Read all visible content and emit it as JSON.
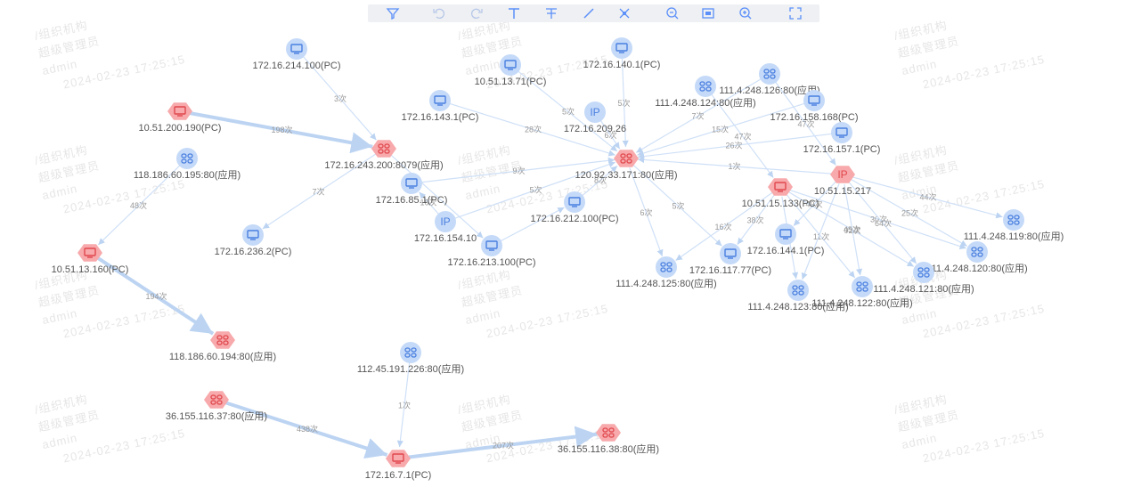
{
  "watermark": {
    "lines": [
      "/组织机构",
      "超级管理员",
      "admin",
      "2024-02-23 17:25:15"
    ]
  },
  "nodes": [
    {
      "label": "172.16.214.100(PC)",
      "kind": "pc",
      "alert": false
    },
    {
      "label": "10.51.13.71(PC)",
      "kind": "pc",
      "alert": false
    },
    {
      "label": "172.16.140.1(PC)",
      "kind": "pc",
      "alert": false
    },
    {
      "label": "172.16.143.1(PC)",
      "kind": "pc",
      "alert": false
    },
    {
      "label": "172.16.209.26",
      "kind": "ip",
      "badge": "IP",
      "alert": false
    },
    {
      "label": "10.51.200.190(PC)",
      "kind": "pc",
      "alert": true
    },
    {
      "label": "172.16.243.200:8079(应用)",
      "kind": "app",
      "alert": true
    },
    {
      "label": "120.92.33.171:80(应用)",
      "kind": "app",
      "alert": true
    },
    {
      "label": "118.186.60.195:80(应用)",
      "kind": "app",
      "alert": false
    },
    {
      "label": "172.16.85.1(PC)",
      "kind": "pc",
      "alert": false
    },
    {
      "label": "172.16.212.100(PC)",
      "kind": "pc",
      "alert": false
    },
    {
      "label": "172.16.154.10",
      "kind": "ip",
      "badge": "IP",
      "alert": false
    },
    {
      "label": "172.16.236.2(PC)",
      "kind": "pc",
      "alert": false
    },
    {
      "label": "172.16.213.100(PC)",
      "kind": "pc",
      "alert": false
    },
    {
      "label": "10.51.13.160(PC)",
      "kind": "pc",
      "alert": true
    },
    {
      "label": "118.186.60.194:80(应用)",
      "kind": "app",
      "alert": true
    },
    {
      "label": "112.45.191.226:80(应用)",
      "kind": "app",
      "alert": false
    },
    {
      "label": "36.155.116.37:80(应用)",
      "kind": "app",
      "alert": true
    },
    {
      "label": "172.16.7.1(PC)",
      "kind": "pc",
      "alert": true
    },
    {
      "label": "36.155.116.38:80(应用)",
      "kind": "app",
      "alert": true
    },
    {
      "label": "111.4.248.126:80(应用)",
      "kind": "app",
      "alert": false
    },
    {
      "label": "111.4.248.124:80(应用)",
      "kind": "app",
      "alert": false
    },
    {
      "label": "172.16.158.168(PC)",
      "kind": "pc",
      "alert": false
    },
    {
      "label": "172.16.157.1(PC)",
      "kind": "pc",
      "alert": false
    },
    {
      "label": "10.51.15.217",
      "kind": "ip",
      "badge": "IP",
      "alert": true
    },
    {
      "label": "10.51.15.133(PC)",
      "kind": "pc",
      "alert": true
    },
    {
      "label": "111.4.248.119:80(应用)",
      "kind": "app",
      "alert": false
    },
    {
      "label": "172.16.144.1(PC)",
      "kind": "pc",
      "alert": false
    },
    {
      "label": "172.16.117.77(PC)",
      "kind": "pc",
      "alert": false
    },
    {
      "label": "111.4.248.120:80(应用)",
      "kind": "app",
      "alert": false
    },
    {
      "label": "111.4.248.125:80(应用)",
      "kind": "app",
      "alert": false
    },
    {
      "label": "111.4.248.121:80(应用)",
      "kind": "app",
      "alert": false
    },
    {
      "label": "111.4.248.122:80(应用)",
      "kind": "app",
      "alert": false
    },
    {
      "label": "111.4.248.123:80(应用)",
      "kind": "app",
      "alert": false
    }
  ],
  "edges": [
    {
      "source": 0,
      "target": 6,
      "label": "3次"
    },
    {
      "source": 5,
      "target": 6,
      "label": "198次",
      "strong": true
    },
    {
      "source": 6,
      "target": 12,
      "label": "7次"
    },
    {
      "source": 6,
      "target": 13
    },
    {
      "source": 3,
      "target": 7,
      "label": "28次"
    },
    {
      "source": 1,
      "target": 7,
      "label": "5次"
    },
    {
      "source": 4,
      "target": 7,
      "label": "6次"
    },
    {
      "source": 2,
      "target": 7,
      "label": "5次"
    },
    {
      "source": 9,
      "target": 7,
      "label": "9次"
    },
    {
      "source": 11,
      "target": 7,
      "label": "5次"
    },
    {
      "source": 10,
      "target": 7,
      "label": "8次"
    },
    {
      "source": 11,
      "target": 9,
      "label": "16次"
    },
    {
      "source": 13,
      "target": 10
    },
    {
      "source": 7,
      "target": 28,
      "label": "5次"
    },
    {
      "source": 7,
      "target": 30,
      "label": "6次"
    },
    {
      "source": 24,
      "target": 7,
      "label": "1次"
    },
    {
      "source": 20,
      "target": 7,
      "label": "7次"
    },
    {
      "source": 22,
      "target": 7,
      "label": "15次"
    },
    {
      "source": 23,
      "target": 7,
      "label": "26次"
    },
    {
      "source": 21,
      "target": 25,
      "label": "47次"
    },
    {
      "source": 20,
      "target": 24,
      "label": "47次"
    },
    {
      "source": 24,
      "target": 26,
      "label": "44次"
    },
    {
      "source": 24,
      "target": 29,
      "label": "25次"
    },
    {
      "source": 25,
      "target": 29,
      "label": "30次"
    },
    {
      "source": 25,
      "target": 28,
      "label": "38次"
    },
    {
      "source": 25,
      "target": 30,
      "label": "16次"
    },
    {
      "source": 24,
      "target": 27,
      "label": "49次"
    },
    {
      "source": 25,
      "target": 32,
      "label": "11次"
    },
    {
      "source": 24,
      "target": 31,
      "label": "64次"
    },
    {
      "source": 25,
      "target": 31,
      "label": "45次"
    },
    {
      "source": 24,
      "target": 32,
      "label": "92次"
    },
    {
      "source": 24,
      "target": 33
    },
    {
      "source": 25,
      "target": 33
    },
    {
      "source": 8,
      "target": 14,
      "label": "48次"
    },
    {
      "source": 14,
      "target": 15,
      "label": "194次",
      "strong": true
    },
    {
      "source": 16,
      "target": 18,
      "label": "1次"
    },
    {
      "source": 17,
      "target": 18,
      "label": "438次",
      "strong": true
    },
    {
      "source": 18,
      "target": 19,
      "label": "207次",
      "strong": true
    }
  ]
}
